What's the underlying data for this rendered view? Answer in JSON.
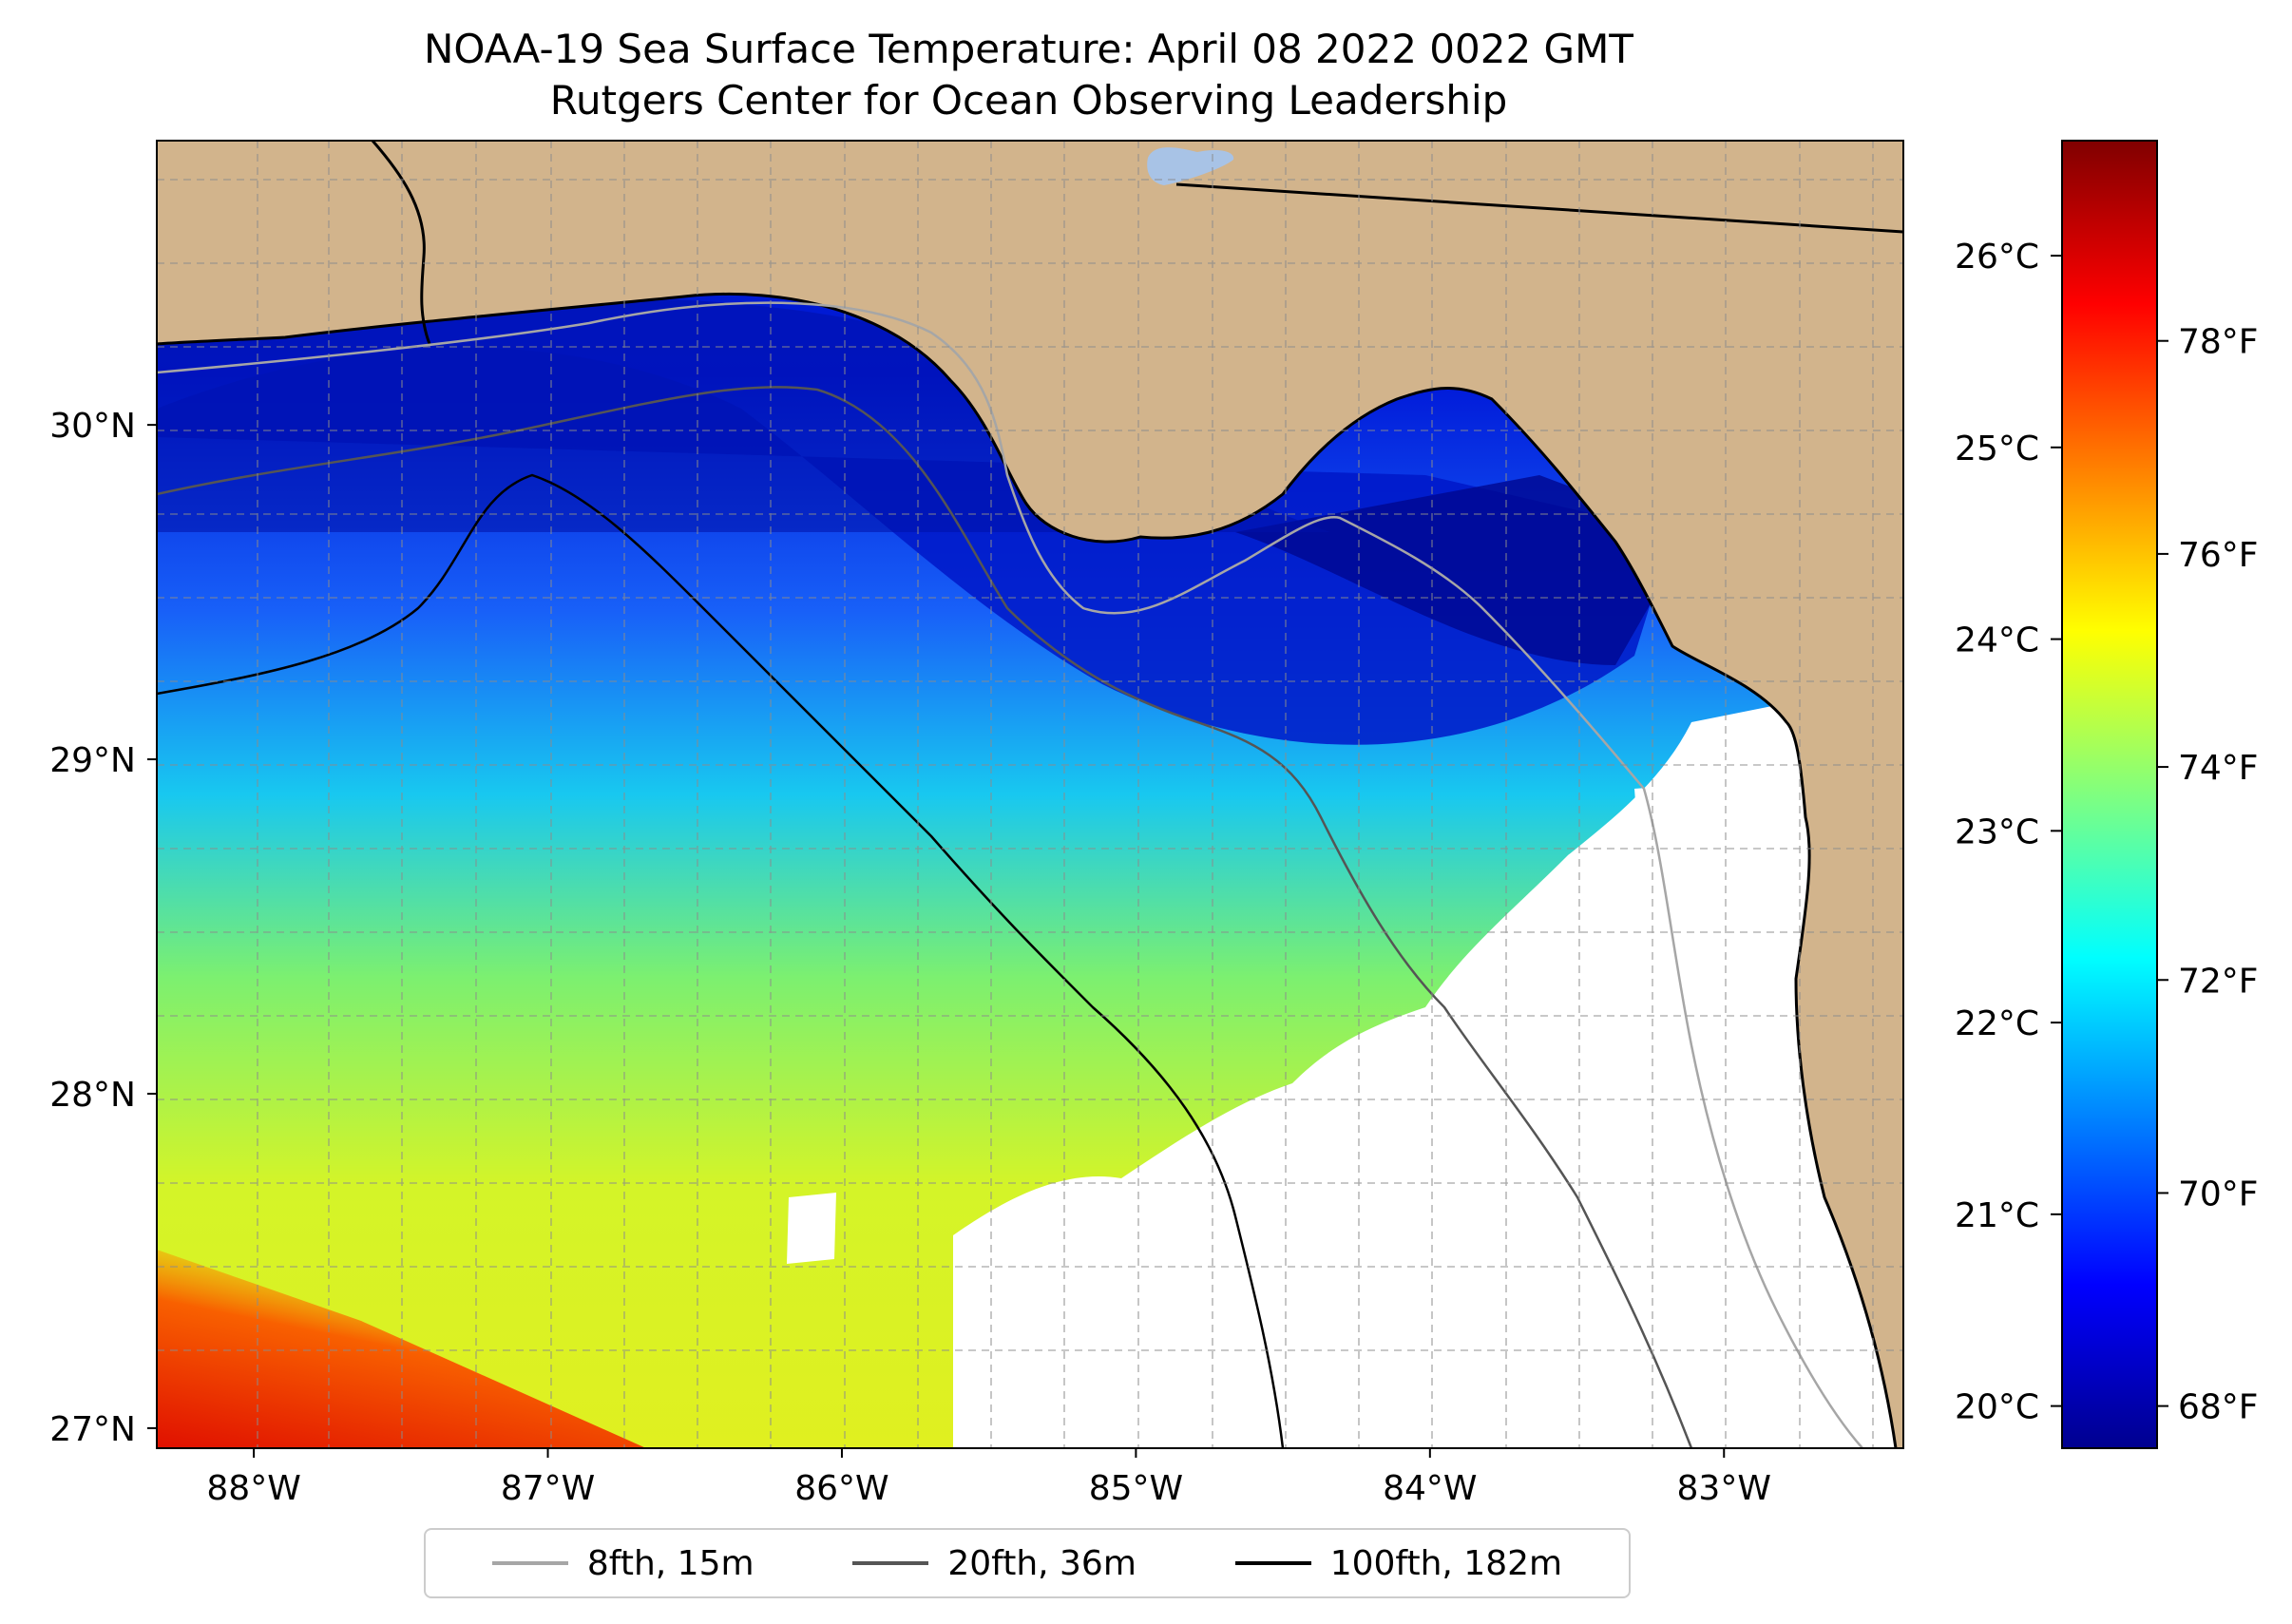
{
  "title": "NOAA-19 Sea Surface Temperature: April 08 2022 0022 GMT",
  "subtitle": "Rutgers Center for Ocean Observing Leadership",
  "map": {
    "lon_range": [
      -88.33,
      -82.39
    ],
    "lat_range": [
      26.94,
      30.85
    ],
    "lon_ticks": [
      {
        "value": -88,
        "label": "88°W"
      },
      {
        "value": -87,
        "label": "87°W"
      },
      {
        "value": -86,
        "label": "86°W"
      },
      {
        "value": -85,
        "label": "85°W"
      },
      {
        "value": -84,
        "label": "84°W"
      },
      {
        "value": -83,
        "label": "83°W"
      }
    ],
    "lat_ticks": [
      {
        "value": 27,
        "label": "27°N"
      },
      {
        "value": 28,
        "label": "28°N"
      },
      {
        "value": 29,
        "label": "29°N"
      },
      {
        "value": 30,
        "label": "30°N"
      }
    ],
    "gridlines": "dashed",
    "land_color": "#d2b48c",
    "no_data_color": "#ffffff"
  },
  "colorbar": {
    "colormap": "jet",
    "celsius_range": [
      19.78,
      26.6
    ],
    "celsius_ticks": [
      {
        "value": 20,
        "label": "20°C"
      },
      {
        "value": 21,
        "label": "21°C"
      },
      {
        "value": 22,
        "label": "22°C"
      },
      {
        "value": 23,
        "label": "23°C"
      },
      {
        "value": 24,
        "label": "24°C"
      },
      {
        "value": 25,
        "label": "25°C"
      },
      {
        "value": 26,
        "label": "26°C"
      }
    ],
    "fahrenheit_ticks": [
      {
        "value": 68,
        "label": "68°F"
      },
      {
        "value": 70,
        "label": "70°F"
      },
      {
        "value": 72,
        "label": "72°F"
      },
      {
        "value": 74,
        "label": "74°F"
      },
      {
        "value": 76,
        "label": "76°F"
      },
      {
        "value": 78,
        "label": "78°F"
      }
    ]
  },
  "legend": {
    "placement": "below map",
    "items": [
      {
        "label": "8fth, 15m",
        "color": "#a6a6a6"
      },
      {
        "label": "20fth, 36m",
        "color": "#555555"
      },
      {
        "label": "100fth, 182m",
        "color": "#000000"
      }
    ]
  }
}
